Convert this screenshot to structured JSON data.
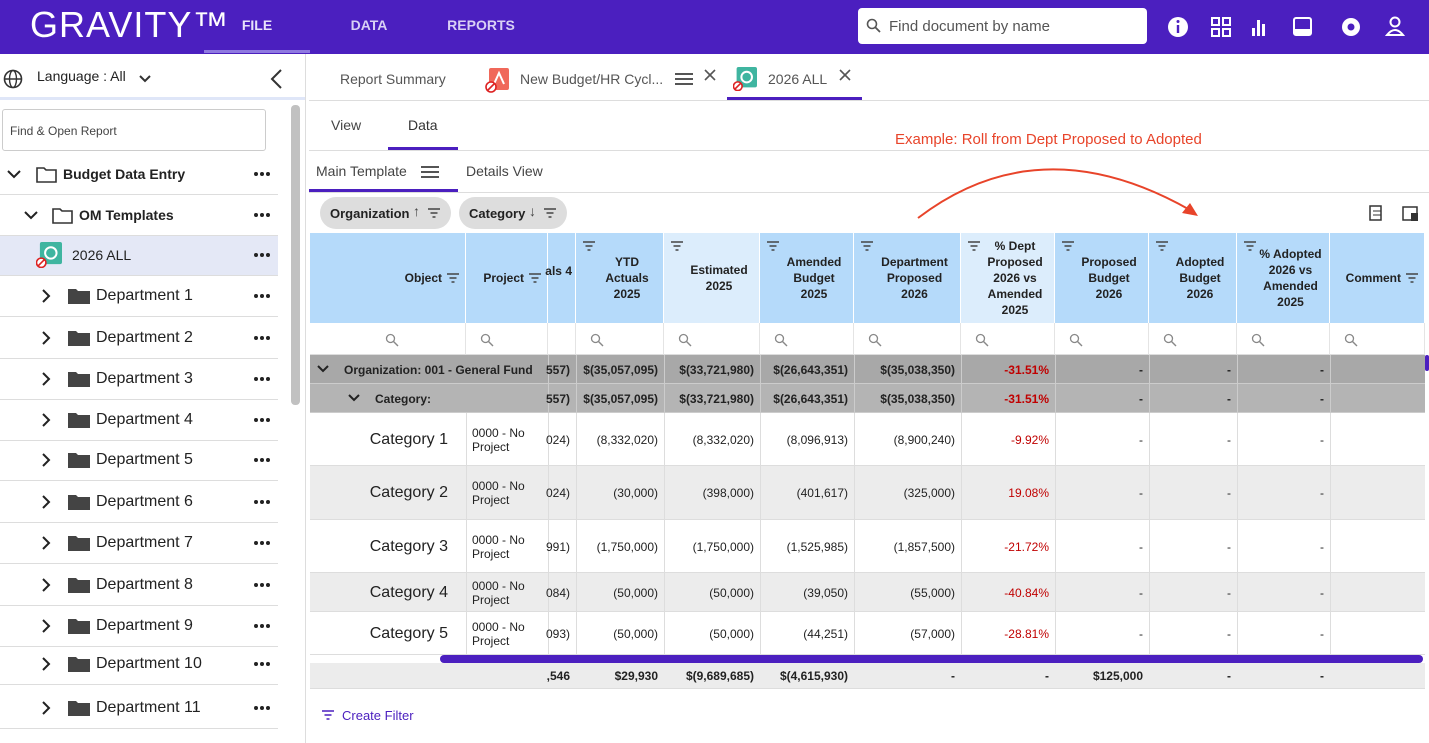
{
  "header": {
    "logo": "GRAVITY™",
    "nav": [
      "FILE",
      "DATA",
      "REPORTS"
    ],
    "search_placeholder": "Find document by name"
  },
  "sidebar": {
    "language": "Language : All",
    "search_placeholder": "Find & Open Report",
    "tree": [
      {
        "label": "Budget Data Entry",
        "level": 0
      },
      {
        "label": "OM Templates",
        "level": 1
      },
      {
        "label": "2026 ALL",
        "level": 2
      },
      {
        "label": "Department 1",
        "level": 2
      },
      {
        "label": "Department 2",
        "level": 2
      },
      {
        "label": "Department 3",
        "level": 2
      },
      {
        "label": "Department 4",
        "level": 2
      },
      {
        "label": "Department 5",
        "level": 2
      },
      {
        "label": "Department 6",
        "level": 2
      },
      {
        "label": "Department 7",
        "level": 2
      },
      {
        "label": "Department 8",
        "level": 2
      },
      {
        "label": "Department 9",
        "level": 2
      },
      {
        "label": "Department 10",
        "level": 2
      },
      {
        "label": "Department 11",
        "level": 2
      }
    ]
  },
  "tabs": [
    "Report Summary",
    "New Budget/HR Cycl...",
    "2026 ALL"
  ],
  "view_tabs": [
    "View",
    "Data"
  ],
  "annotation": "Example: Roll from Dept Proposed to Adopted",
  "template_tabs": [
    "Main Template",
    "Details View"
  ],
  "group_chips": [
    "Organization",
    "Category"
  ],
  "table": {
    "columns": [
      "Object",
      "Project",
      "als 4",
      "YTD Actuals 2025",
      "Estimated 2025",
      "Amended Budget 2025",
      "Department Proposed 2026",
      "% Dept Proposed 2026 vs Amended 2025",
      "Proposed Budget 2026",
      "Adopted Budget 2026",
      "% Adopted 2026 vs Amended 2025",
      "Comment"
    ],
    "group_rows": [
      {
        "label": "Organization: 001 - General Fund",
        "cells": [
          "557)",
          "$(35,057,095)",
          "$(33,721,980)",
          "$(26,643,351)",
          "$(35,038,350)",
          "-31.51%",
          "-",
          "-",
          "-",
          null
        ]
      },
      {
        "label": "Category:",
        "cells": [
          "557)",
          "$(35,057,095)",
          "$(33,721,980)",
          "$(26,643,351)",
          "$(35,038,350)",
          "-31.51%",
          "-",
          "-",
          "-",
          null
        ]
      }
    ],
    "rows": [
      [
        "Category 1",
        "0000 - No Project",
        "024)",
        "(8,332,020)",
        "(8,332,020)",
        "(8,096,913)",
        "(8,900,240)",
        "-9.92%",
        "-",
        "-",
        "-",
        null
      ],
      [
        "Category 2",
        "0000 - No Project",
        "024)",
        "(30,000)",
        "(398,000)",
        "(401,617)",
        "(325,000)",
        "19.08%",
        "-",
        "-",
        "-",
        null
      ],
      [
        "Category 3",
        "0000 - No Project",
        "991)",
        "(1,750,000)",
        "(1,750,000)",
        "(1,525,985)",
        "(1,857,500)",
        "-21.72%",
        "-",
        "-",
        "-",
        null
      ],
      [
        "Category 4",
        "0000 - No Project",
        "084)",
        "(50,000)",
        "(50,000)",
        "(39,050)",
        "(55,000)",
        "-40.84%",
        "-",
        "-",
        "-",
        null
      ],
      [
        "Category 5",
        "0000 - No Project",
        "093)",
        "(50,000)",
        "(50,000)",
        "(44,251)",
        "(57,000)",
        "-28.81%",
        "-",
        "-",
        "-",
        null
      ]
    ],
    "totals": [
      null,
      null,
      ",546",
      "$29,930",
      "$(9,689,685)",
      "$(4,615,930)",
      "-",
      "-",
      "$125,000",
      "-",
      "-",
      null
    ]
  },
  "create_filter": "Create Filter"
}
